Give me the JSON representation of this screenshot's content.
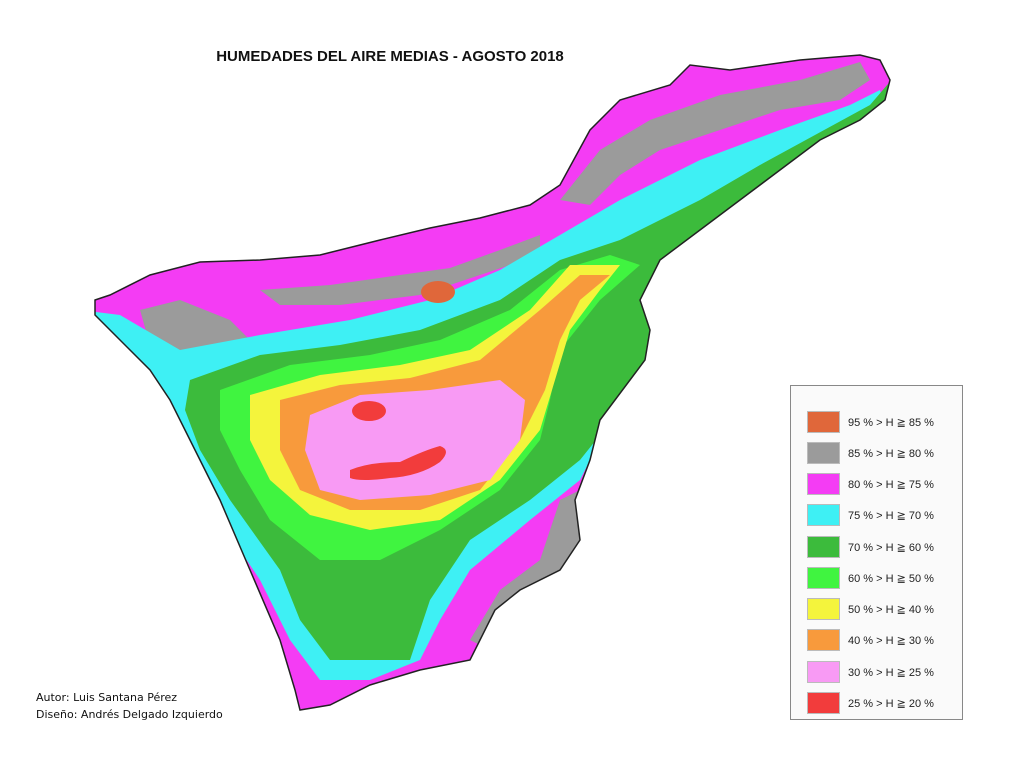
{
  "title": "HUMEDADES DEL AIRE MEDIAS - AGOSTO 2018",
  "legend": [
    {
      "label": "95 % > H ≧ 85 %",
      "color": "#e0673a"
    },
    {
      "label": "85 % > H ≧ 80 %",
      "color": "#9b9b9b"
    },
    {
      "label": "80 % > H ≧ 75 %",
      "color": "#f43cf4"
    },
    {
      "label": "75 % > H ≧ 70 %",
      "color": "#3ef0f4"
    },
    {
      "label": "70 % > H ≧ 60 %",
      "color": "#3cbb3c"
    },
    {
      "label": "60 % > H ≧ 50 %",
      "color": "#40f440"
    },
    {
      "label": "50 % > H ≧ 40 %",
      "color": "#f4f43c"
    },
    {
      "label": "40 % > H ≧ 30 %",
      "color": "#f89a3c"
    },
    {
      "label": "30 % > H ≧ 25 %",
      "color": "#f89af4"
    },
    {
      "label": "25 % > H ≧ 20 %",
      "color": "#f23c3c"
    }
  ],
  "credits": {
    "author": "Autor: Luis Santana Pérez",
    "design": "Diseño: Andrés Delgado Izquierdo"
  }
}
